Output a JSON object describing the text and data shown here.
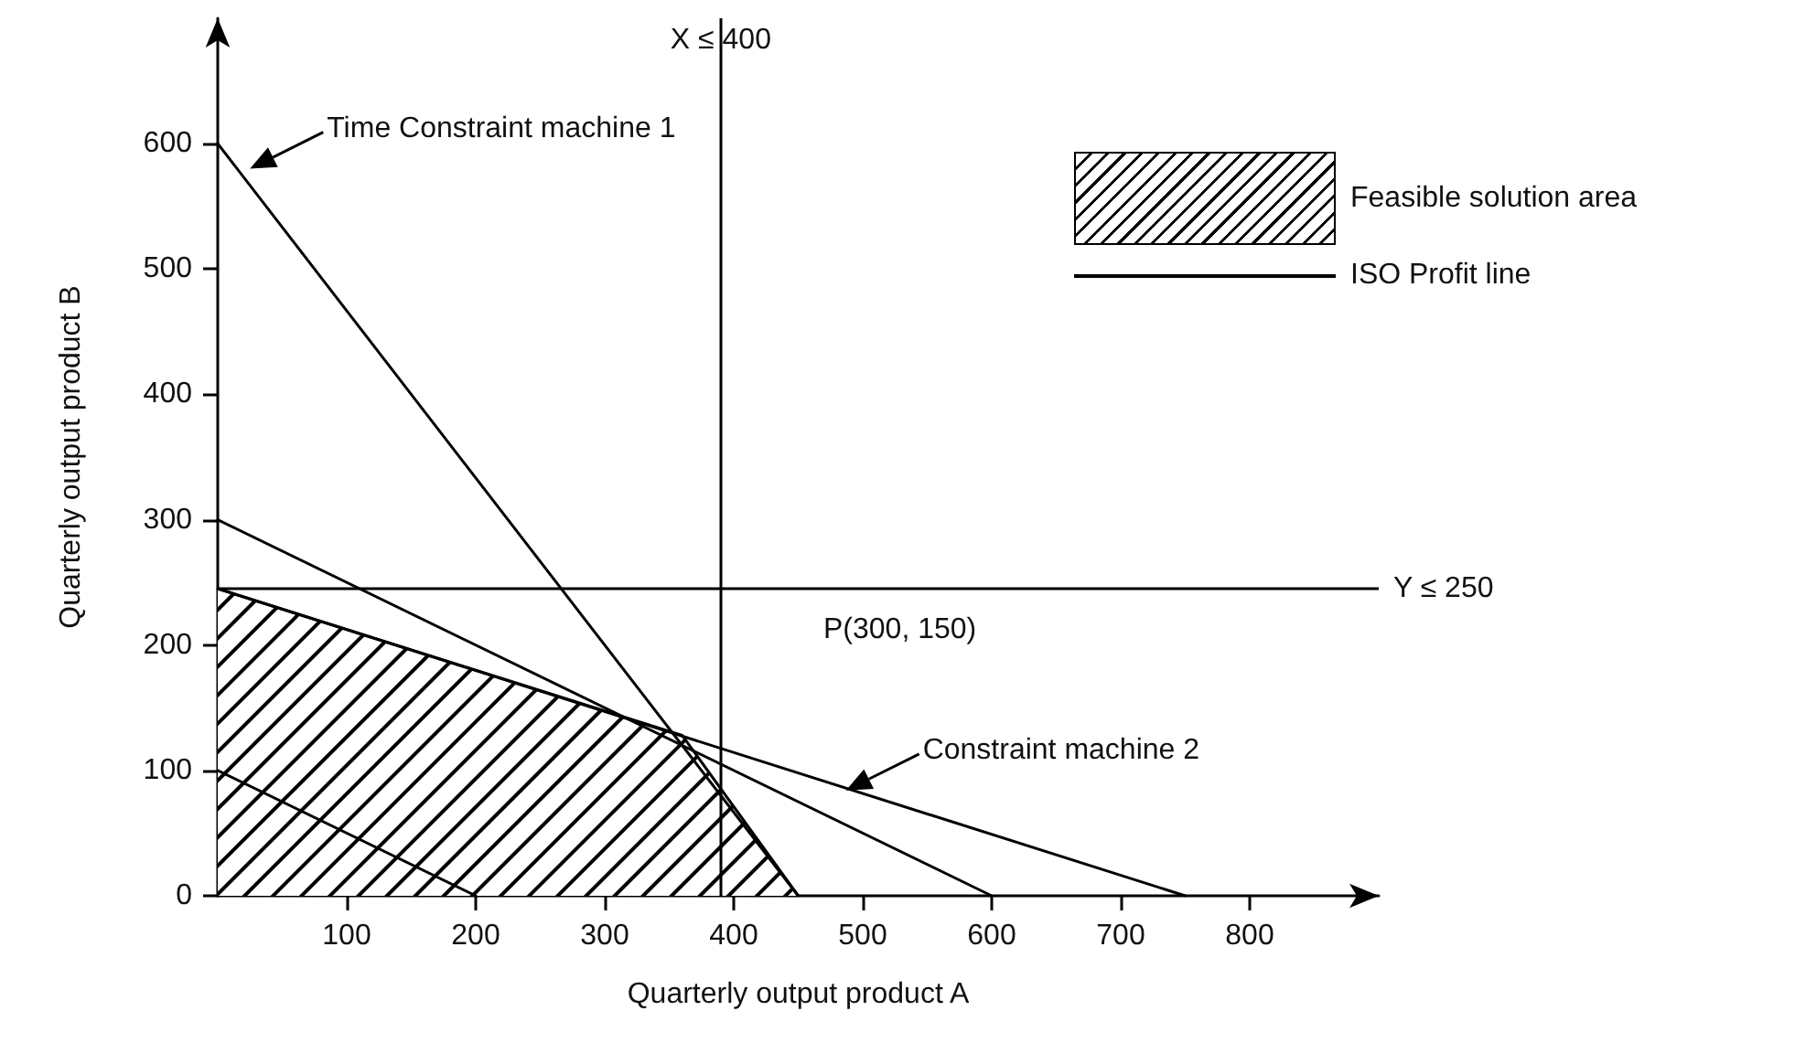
{
  "chart_data": {
    "type": "line",
    "xlabel": "Quarterly output product A",
    "ylabel": "Quarterly output product B",
    "xlim": [
      0,
      900
    ],
    "xticks": [
      100,
      200,
      300,
      400,
      500,
      600,
      700,
      800
    ],
    "ylim": [
      0,
      700
    ],
    "yticks": [
      0,
      100,
      200,
      300,
      400,
      500,
      600
    ],
    "legend": "top right",
    "marker": "none",
    "line_style": "solid",
    "series": [
      {
        "type": "area",
        "name": "Feasible solution area",
        "color": "#000000",
        "x": [
          0,
          360,
          450
        ],
        "values": [
          245,
          128,
          0
        ]
      },
      {
        "name": "ISO Profit line",
        "color": "#000000",
        "x": [
          0,
          200
        ],
        "values": [
          100,
          0
        ]
      },
      {
        "color": "#000000",
        "x": [
          0,
          600
        ],
        "values": [
          300,
          0
        ]
      },
      {
        "color": "#000000",
        "x": [
          0,
          450
        ],
        "values": [
          600,
          0
        ]
      },
      {
        "color": "#000000",
        "x": [
          0,
          750
        ],
        "values": [
          245,
          0
        ]
      }
    ],
    "ref_lines": [
      {
        "axis": "x",
        "value": 390,
        "label": "X ≤ 400"
      },
      {
        "axis": "y",
        "value": 245,
        "label": "Y ≤ 250"
      }
    ],
    "annotations": [
      {
        "text": "Time Constraint machine 1",
        "x": 25,
        "y": 580
      },
      {
        "text": "Constraint machine 2",
        "x": 487,
        "y": 84
      },
      "P(300, 150)"
    ]
  }
}
